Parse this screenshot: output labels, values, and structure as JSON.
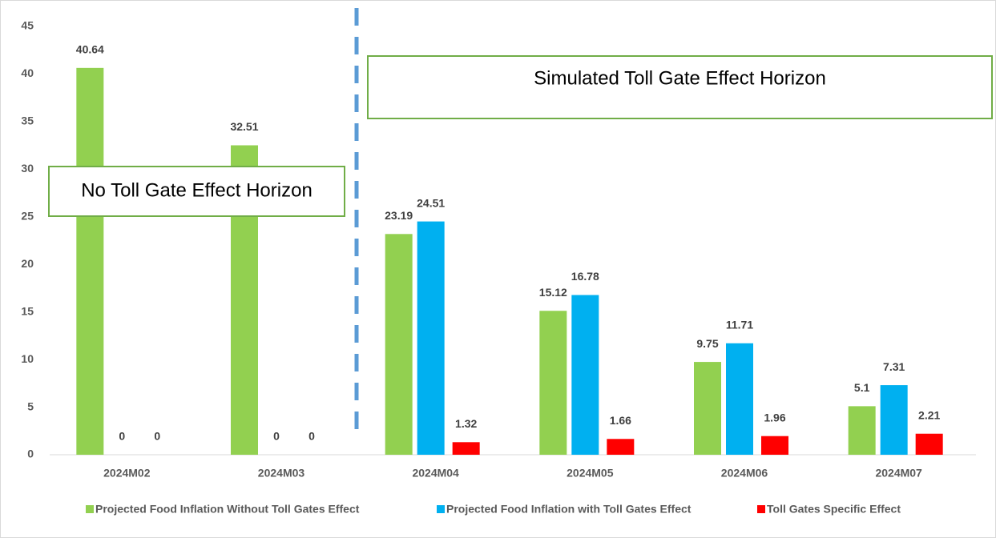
{
  "chart_data": {
    "type": "bar",
    "categories": [
      "2024M02",
      "2024M03",
      "2024M04",
      "2024M05",
      "2024M06",
      "2024M07"
    ],
    "series": [
      {
        "name": "Projected Food Inflation Without Toll Gates Effect",
        "color": "#92d050",
        "values": [
          40.64,
          32.51,
          23.19,
          15.12,
          9.75,
          5.1
        ]
      },
      {
        "name": "Projected Food Inflation with  Toll Gates Effect",
        "color": "#00b0f0",
        "values": [
          0,
          0,
          24.51,
          16.78,
          11.71,
          7.31
        ]
      },
      {
        "name": "Toll Gates Specific Effect",
        "color": "#ff0000",
        "values": [
          0,
          0,
          1.32,
          1.66,
          1.96,
          2.21
        ]
      }
    ],
    "ylim": [
      0,
      45
    ],
    "yticks": [
      0,
      5,
      10,
      15,
      20,
      25,
      30,
      35,
      40,
      45
    ],
    "grid": false,
    "legend": "bottom",
    "annotations": [
      "No Toll Gate Effect Horizon",
      "Simulated Toll Gate Effect Horizon"
    ]
  }
}
